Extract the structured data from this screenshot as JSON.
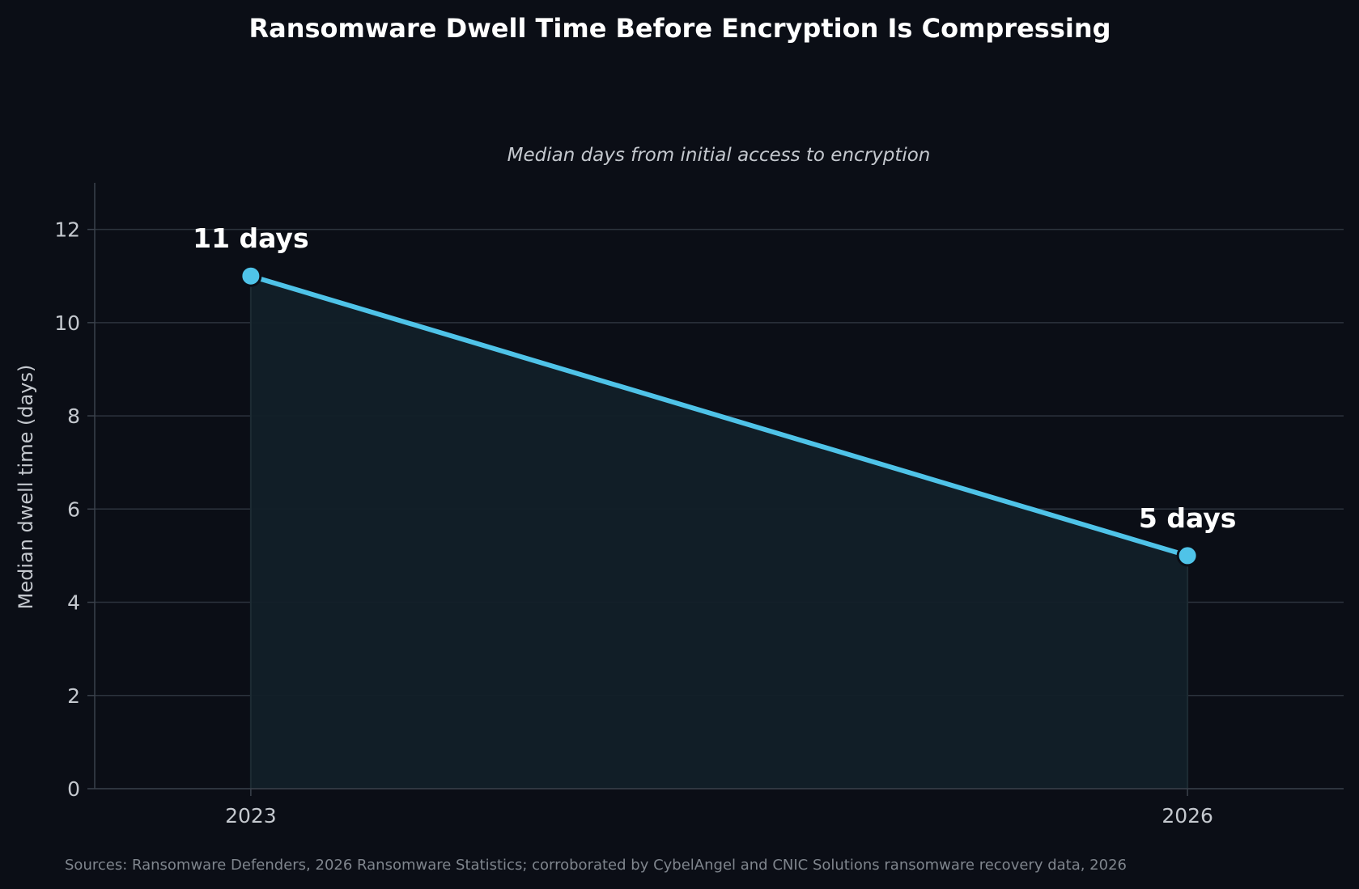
{
  "chart_data": {
    "type": "line",
    "title": "Ransomware Dwell Time Before Encryption Is Compressing",
    "subtitle": "Median days from initial access to encryption",
    "xlabel": "",
    "ylabel": "Median dwell time (days)",
    "x": [
      "2023",
      "2026"
    ],
    "series": [
      {
        "values": [
          11,
          5
        ],
        "data_labels": [
          "11 days",
          "5 days"
        ],
        "color": "#4fc3e8"
      }
    ],
    "xlim": [
      2022.5,
      2026.5
    ],
    "ylim": [
      0,
      13
    ],
    "yticks": [
      "0",
      "2",
      "4",
      "6",
      "8",
      "10",
      "12"
    ],
    "grid": true,
    "area_fill": true,
    "source": "Sources: Ransomware Defenders, 2026 Ransomware Statistics; corroborated by CybelAngel and CNIC Solutions ransomware recovery data, 2026"
  },
  "colors": {
    "background": "#0b0e16",
    "line": "#4fc3e8",
    "fill": "#122028",
    "grid": "#2c333d",
    "axis": "#3a414b",
    "text": "#ffffff",
    "muted": "#c4c8ce",
    "source": "#7f858d"
  }
}
